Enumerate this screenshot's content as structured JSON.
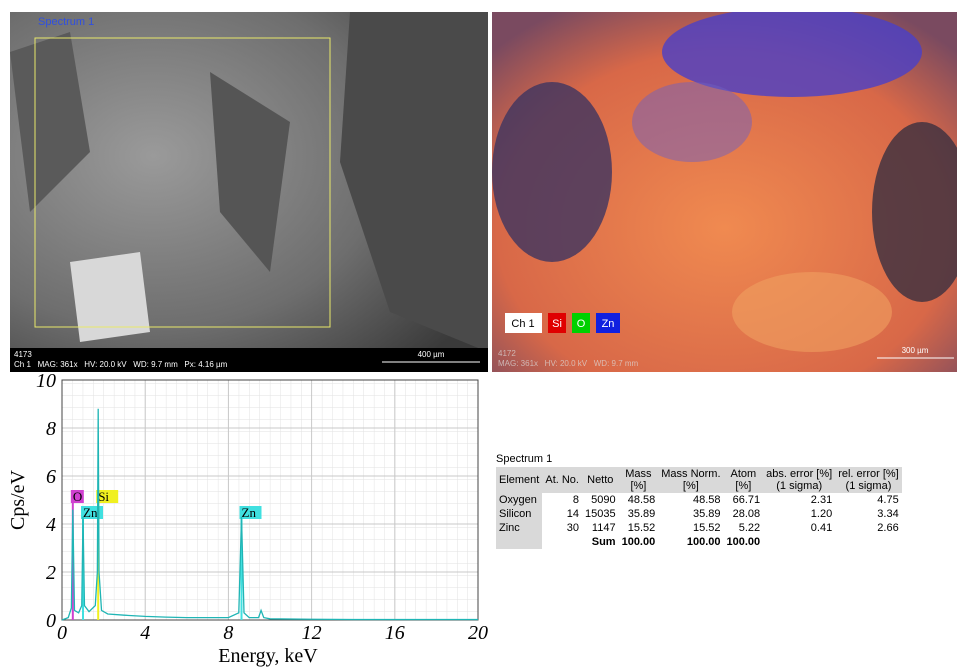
{
  "sem_image": {
    "spectrum_label": "Spectrum 1",
    "id": "4173",
    "info": "Ch 1   MAG: 361x   HV: 20.0 kV   WD: 9.7 mm   Px: 4.16 µm",
    "scale": "400 µm"
  },
  "map_image": {
    "legend": [
      "Ch 1",
      "Si",
      "O",
      "Zn"
    ],
    "id": "4172",
    "info": "MAG: 361x   HV: 20.0 kV   WD: 9.7 mm",
    "scale": "300 µm"
  },
  "chart_data": {
    "type": "line",
    "ylabel": "Cps/eV",
    "xlabel": "Energy, keV",
    "color": "#1fb5b5",
    "x": [
      0,
      0.3,
      0.45,
      0.52,
      0.6,
      0.8,
      0.95,
      1.01,
      1.08,
      1.3,
      1.6,
      1.7,
      1.74,
      1.78,
      1.9,
      2.2,
      3,
      4,
      5,
      6,
      7,
      8,
      8.5,
      8.63,
      8.75,
      9,
      9.45,
      9.57,
      9.7,
      10,
      12,
      14,
      16,
      18,
      20
    ],
    "values": [
      0,
      0.1,
      0.5,
      4.6,
      0.4,
      0.3,
      0.6,
      4.3,
      0.6,
      0.35,
      0.6,
      2,
      8.8,
      2,
      0.4,
      0.25,
      0.2,
      0.15,
      0.12,
      0.1,
      0.1,
      0.1,
      0.3,
      4.3,
      0.3,
      0.1,
      0.1,
      0.4,
      0.1,
      0.05,
      0.03,
      0.02,
      0.02,
      0.02,
      0.02
    ],
    "xlim": [
      0,
      20
    ],
    "ylim": [
      0,
      10
    ],
    "xticks": [
      0,
      4,
      8,
      12,
      16,
      20
    ],
    "yticks": [
      0,
      2,
      4,
      6,
      8,
      10
    ],
    "grid": true,
    "annotations": [
      {
        "text": "O",
        "x": 0.52,
        "color": "#d040d0"
      },
      {
        "text": "Zn",
        "x": 1.01,
        "color": "#40e0e0"
      },
      {
        "text": "Si",
        "x": 1.74,
        "color": "#f0f020"
      },
      {
        "text": "Zn",
        "x": 8.63,
        "color": "#40e0e0"
      }
    ]
  },
  "table": {
    "title": "Spectrum 1",
    "header": [
      [
        "Element"
      ],
      [
        "At. No."
      ],
      [
        "Netto"
      ],
      [
        "Mass",
        "[%]"
      ],
      [
        "Mass Norm.",
        "[%]"
      ],
      [
        "Atom",
        "[%]"
      ],
      [
        "abs. error [%]",
        "(1 sigma)"
      ],
      [
        "rel. error [%]",
        "(1 sigma)"
      ]
    ],
    "rows": [
      [
        "Oxygen",
        "8",
        "5090",
        "48.58",
        "48.58",
        "66.71",
        "2.31",
        "4.75"
      ],
      [
        "Silicon",
        "14",
        "15035",
        "35.89",
        "35.89",
        "28.08",
        "1.20",
        "3.34"
      ],
      [
        "Zinc",
        "30",
        "1147",
        "15.52",
        "15.52",
        "5.22",
        "0.41",
        "2.66"
      ]
    ],
    "sum": [
      "Sum",
      "100.00",
      "100.00",
      "100.00"
    ]
  }
}
